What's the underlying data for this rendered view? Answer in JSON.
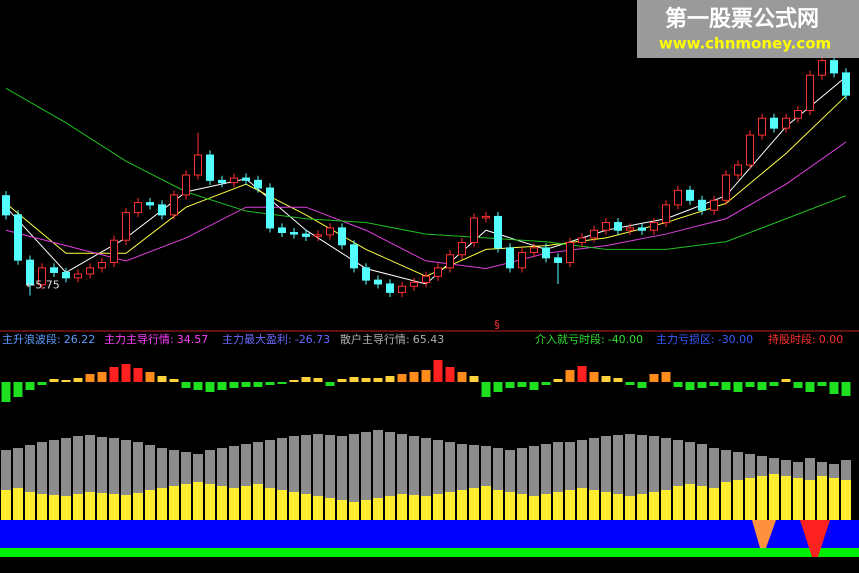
{
  "watermark": {
    "title": "第一股票公式网",
    "url": "www.chnmoney.com"
  },
  "chart_data": [
    {
      "type": "candlestick",
      "up_color": "#ff3030",
      "down_color": "#54ffff",
      "ylim": [
        5.3,
        9.6
      ],
      "low_label": "←5.75",
      "marker": "§",
      "open": [
        7.05,
        6.8,
        6.21,
        5.89,
        6.11,
        6.05,
        5.98,
        6.03,
        6.11,
        6.18,
        6.47,
        6.83,
        6.96,
        6.93,
        6.8,
        7.06,
        7.32,
        7.58,
        7.25,
        7.22,
        7.28,
        7.25,
        7.15,
        6.63,
        6.57,
        6.55,
        6.52,
        6.54,
        6.63,
        6.41,
        6.11,
        5.95,
        5.9,
        5.79,
        5.87,
        5.92,
        6.0,
        6.11,
        6.28,
        6.44,
        6.76,
        6.78,
        6.37,
        6.11,
        6.31,
        6.37,
        6.24,
        6.18,
        6.44,
        6.5,
        6.6,
        6.7,
        6.6,
        6.63,
        6.6,
        6.7,
        6.93,
        7.12,
        6.99,
        6.86,
        6.99,
        7.32,
        7.45,
        7.84,
        8.06,
        7.93,
        8.06,
        8.16,
        8.62,
        8.81,
        8.65
      ],
      "high": [
        7.11,
        6.86,
        6.27,
        6.17,
        6.17,
        6.11,
        6.09,
        6.17,
        6.24,
        6.53,
        6.89,
        7.02,
        7.02,
        6.99,
        7.12,
        7.38,
        7.87,
        7.64,
        7.31,
        7.34,
        7.34,
        7.31,
        7.21,
        6.69,
        6.63,
        6.61,
        6.6,
        6.69,
        6.69,
        6.47,
        6.17,
        6.01,
        5.96,
        5.93,
        5.98,
        6.06,
        6.17,
        6.34,
        6.5,
        6.82,
        6.84,
        6.84,
        6.43,
        6.37,
        6.43,
        6.43,
        6.3,
        6.5,
        6.56,
        6.66,
        6.76,
        6.76,
        6.69,
        6.69,
        6.76,
        6.99,
        7.18,
        7.18,
        7.05,
        7.05,
        7.38,
        7.51,
        7.9,
        8.12,
        8.12,
        8.12,
        8.22,
        8.68,
        9.05,
        8.87,
        8.71
      ],
      "low": [
        6.74,
        6.15,
        5.75,
        5.83,
        5.99,
        5.92,
        5.92,
        5.97,
        6.05,
        6.12,
        6.41,
        6.77,
        6.87,
        6.74,
        6.74,
        7.0,
        7.26,
        7.19,
        7.16,
        7.16,
        7.19,
        7.09,
        6.57,
        6.51,
        6.49,
        6.46,
        6.46,
        6.48,
        6.35,
        6.05,
        5.89,
        5.84,
        5.73,
        5.73,
        5.81,
        5.86,
        5.94,
        6.05,
        6.22,
        6.38,
        6.7,
        6.31,
        6.05,
        6.05,
        6.25,
        6.18,
        5.9,
        6.12,
        6.38,
        6.44,
        6.54,
        6.54,
        6.54,
        6.54,
        6.54,
        6.64,
        6.87,
        6.93,
        6.8,
        6.8,
        6.93,
        7.26,
        7.39,
        7.78,
        7.87,
        7.87,
        8.0,
        8.1,
        8.56,
        8.59,
        8.3
      ],
      "close": [
        6.8,
        6.21,
        5.89,
        6.11,
        6.05,
        5.98,
        6.03,
        6.11,
        6.18,
        6.47,
        6.83,
        6.96,
        6.93,
        6.8,
        7.06,
        7.32,
        7.58,
        7.25,
        7.22,
        7.28,
        7.25,
        7.15,
        6.63,
        6.57,
        6.55,
        6.52,
        6.54,
        6.63,
        6.41,
        6.11,
        5.95,
        5.9,
        5.79,
        5.87,
        5.92,
        6.0,
        6.11,
        6.28,
        6.44,
        6.76,
        6.78,
        6.37,
        6.11,
        6.31,
        6.37,
        6.24,
        6.18,
        6.44,
        6.5,
        6.6,
        6.7,
        6.6,
        6.63,
        6.6,
        6.7,
        6.93,
        7.12,
        6.99,
        6.86,
        6.99,
        7.32,
        7.45,
        7.84,
        8.06,
        7.93,
        8.06,
        8.16,
        8.62,
        8.81,
        8.65,
        8.36
      ],
      "series": [
        {
          "color": "#ffffff",
          "x": [
            0,
            5,
            10,
            15,
            20,
            25,
            30,
            35,
            40,
            45,
            50,
            55,
            60,
            65,
            70
          ],
          "values": [
            6.9,
            6.05,
            6.5,
            7.1,
            7.27,
            6.6,
            6.1,
            5.9,
            6.6,
            6.35,
            6.6,
            6.75,
            7.05,
            7.95,
            8.6
          ]
        },
        {
          "color": "#ffff40",
          "x": [
            0,
            5,
            10,
            15,
            20,
            25,
            30,
            35,
            40,
            45,
            50,
            55,
            60,
            65,
            70
          ],
          "values": [
            6.95,
            6.3,
            6.3,
            6.9,
            7.2,
            6.8,
            6.35,
            6.0,
            6.35,
            6.4,
            6.5,
            6.7,
            6.95,
            7.6,
            8.35
          ]
        },
        {
          "color": "#e040e0",
          "x": [
            0,
            5,
            10,
            15,
            20,
            25,
            30,
            35,
            40,
            45,
            50,
            55,
            60,
            65,
            70
          ],
          "values": [
            6.6,
            6.4,
            6.2,
            6.5,
            6.9,
            6.9,
            6.6,
            6.2,
            6.1,
            6.3,
            6.4,
            6.55,
            6.75,
            7.2,
            7.75
          ]
        },
        {
          "color": "#20c020",
          "x": [
            0,
            5,
            10,
            15,
            20,
            25,
            30,
            35,
            40,
            45,
            50,
            55,
            60,
            65,
            70
          ],
          "values": [
            8.45,
            8.0,
            7.5,
            7.1,
            6.85,
            6.75,
            6.7,
            6.55,
            6.5,
            6.45,
            6.35,
            6.35,
            6.45,
            6.75,
            7.05
          ]
        }
      ]
    },
    {
      "type": "bar",
      "ylim": [
        -30,
        30
      ],
      "negative_color": "#1ee01e",
      "positive_colors": [
        "#ffd23c",
        "#ff8c1a",
        "#ff2020"
      ],
      "readouts": [
        {
          "name": "主升浪波段:",
          "value": 26.22,
          "color": "#5a9cff"
        },
        {
          "name": "主力主导行情:",
          "value": 34.57,
          "color": "#ff40ff"
        },
        {
          "name": "主力最大盈利:",
          "value": -26.73,
          "color": "#6a6aff"
        },
        {
          "name": "散户主导行情:",
          "value": 65.43,
          "color": "#b0b0b0"
        },
        {
          "name": "介入就亏时段:",
          "value": -40,
          "value_label": "-40.00",
          "color": "#30e030"
        },
        {
          "name": "主力亏损区:",
          "value": -30,
          "value_label": "-30.00",
          "color": "#3a5aff"
        },
        {
          "name": "持股时段:",
          "value": 0,
          "value_label": "0.00",
          "color": "#ff3030"
        }
      ],
      "values": [
        -20,
        -15,
        -8,
        -3,
        3,
        2,
        4,
        8,
        10,
        15,
        18,
        14,
        10,
        6,
        3,
        -6,
        -8,
        -10,
        -8,
        -6,
        -5,
        -5,
        -3,
        -2,
        2,
        5,
        4,
        -4,
        3,
        5,
        4,
        4,
        6,
        8,
        10,
        12,
        22,
        15,
        10,
        6,
        -15,
        -10,
        -6,
        -5,
        -8,
        -3,
        3,
        12,
        16,
        10,
        6,
        4,
        -3,
        -6,
        8,
        10,
        -5,
        -8,
        -6,
        -4,
        -8,
        -10,
        -5,
        -8,
        -4,
        3,
        -6,
        -10,
        -4,
        -12,
        -14
      ]
    },
    {
      "type": "overlay-bar",
      "ylim": [
        0,
        100
      ],
      "series": [
        {
          "color": "#8c8c8c",
          "values": [
            70,
            72,
            75,
            78,
            80,
            82,
            84,
            85,
            83,
            82,
            80,
            78,
            75,
            72,
            70,
            68,
            66,
            70,
            72,
            74,
            76,
            78,
            80,
            82,
            84,
            85,
            86,
            85,
            84,
            86,
            88,
            90,
            88,
            86,
            84,
            82,
            80,
            78,
            76,
            75,
            74,
            72,
            70,
            72,
            74,
            76,
            78,
            78,
            80,
            82,
            84,
            85,
            86,
            85,
            84,
            82,
            80,
            78,
            76,
            72,
            70,
            68,
            66,
            64,
            62,
            60,
            58,
            62,
            58,
            56,
            60
          ]
        },
        {
          "color": "#ffee30",
          "values": [
            30,
            32,
            28,
            26,
            25,
            24,
            26,
            28,
            27,
            26,
            25,
            27,
            30,
            32,
            34,
            36,
            38,
            36,
            34,
            32,
            34,
            36,
            32,
            30,
            28,
            26,
            24,
            22,
            20,
            18,
            20,
            22,
            24,
            26,
            25,
            24,
            26,
            28,
            30,
            32,
            34,
            30,
            28,
            26,
            24,
            26,
            28,
            30,
            32,
            30,
            28,
            26,
            24,
            26,
            28,
            30,
            34,
            36,
            34,
            32,
            38,
            40,
            42,
            44,
            46,
            44,
            42,
            40,
            44,
            42,
            40
          ]
        }
      ]
    }
  ]
}
